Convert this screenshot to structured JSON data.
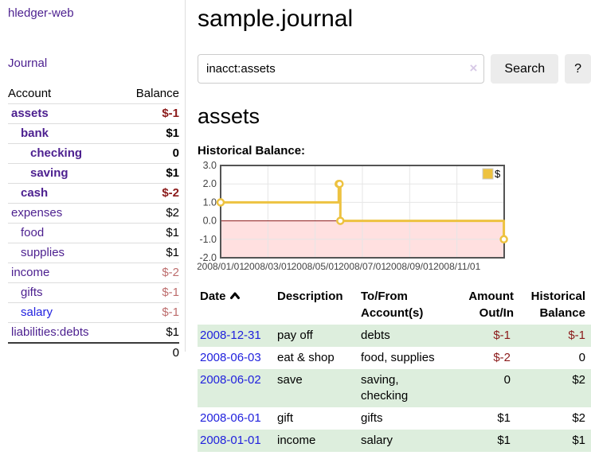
{
  "app": {
    "brand": "hledger-web",
    "nav_journal": "Journal"
  },
  "colors": {
    "link_purple": "#4c1f8f",
    "link_blue": "#2121dd",
    "negative_dark": "#8b1a1a",
    "negative_light": "#bd6d6d",
    "row_green": "#ddeedd",
    "series_gold": "#edc240",
    "grid_border": "#545454",
    "gridline": "#e6e6e6",
    "zero_line": "#8b1a1a"
  },
  "sidebar": {
    "header": {
      "account": "Account",
      "balance": "Balance"
    },
    "accounts": [
      {
        "name": "assets",
        "level": 1,
        "bold": true,
        "balance": "$-1",
        "neg": "dark"
      },
      {
        "name": "bank",
        "level": 2,
        "bold": true,
        "balance": "$1"
      },
      {
        "name": "checking",
        "level": 3,
        "bold": true,
        "balance": "0"
      },
      {
        "name": "saving",
        "level": 3,
        "bold": true,
        "balance": "$1"
      },
      {
        "name": "cash",
        "level": 2,
        "bold": true,
        "balance": "$-2",
        "neg": "dark"
      },
      {
        "name": "expenses",
        "level": 1,
        "bold": false,
        "balance": "$2"
      },
      {
        "name": "food",
        "level": 2,
        "bold": false,
        "balance": "$1"
      },
      {
        "name": "supplies",
        "level": 2,
        "bold": false,
        "balance": "$1"
      },
      {
        "name": "income",
        "level": 1,
        "bold": false,
        "balance": "$-2",
        "neg": "light"
      },
      {
        "name": "gifts",
        "level": 2,
        "bold": false,
        "balance": "$-1",
        "neg": "light"
      },
      {
        "name": "salary",
        "level": 2,
        "bold": false,
        "balance": "$-1",
        "neg": "light",
        "link": "blue"
      },
      {
        "name": "liabilities:debts",
        "level": 1,
        "bold": false,
        "balance": "$1"
      }
    ],
    "total": "0"
  },
  "main": {
    "title": "sample.journal",
    "search": {
      "value": "inacct:assets",
      "clear_icon": "×",
      "button": "Search",
      "help_button": "?"
    },
    "account_heading": "assets",
    "chart_label": "Historical Balance:"
  },
  "chart_data": {
    "type": "line",
    "title": "Historical Balance",
    "step": true,
    "series": [
      {
        "name": "$",
        "color": "#edc240",
        "points": [
          {
            "date": "2008-01-01",
            "y": 1
          },
          {
            "date": "2008-06-01",
            "y": 2
          },
          {
            "date": "2008-06-02",
            "y": 2
          },
          {
            "date": "2008-06-03",
            "y": 0
          },
          {
            "date": "2008-12-31",
            "y": -1
          }
        ]
      }
    ],
    "x_tick_labels": [
      "2008/01/01",
      "2008/03/01",
      "2008/05/01",
      "2008/07/01",
      "2008/09/01",
      "2008/11/01"
    ],
    "x_tick_months": [
      0,
      2,
      4,
      6,
      8,
      10
    ],
    "xlim_months": [
      0,
      12
    ],
    "y_ticks": [
      3.0,
      2.0,
      1.0,
      0.0,
      -1.0,
      -2.0
    ],
    "y_tick_labels": [
      "3.0",
      "2.0",
      "1.0",
      "0.0",
      "-1.0",
      "-2.0"
    ],
    "ylim": [
      -2,
      3
    ],
    "grid": true,
    "negative_region_shaded": true,
    "legend": {
      "label": "$",
      "position": "top-right"
    }
  },
  "register": {
    "headers": [
      {
        "lines": [
          "Date"
        ],
        "sorted": "asc"
      },
      {
        "lines": [
          "Description"
        ]
      },
      {
        "lines": [
          "To/From",
          "Account(s)"
        ]
      },
      {
        "lines": [
          "Amount",
          "Out/In"
        ],
        "align": "right"
      },
      {
        "lines": [
          "Historical",
          "Balance"
        ],
        "align": "right"
      }
    ],
    "rows": [
      {
        "date": "2008-12-31",
        "description": "pay off",
        "accounts_lines": [
          "debts"
        ],
        "amount": "$-1",
        "amount_neg": true,
        "balance": "$-1",
        "balance_neg": true
      },
      {
        "date": "2008-06-03",
        "description": "eat & shop",
        "accounts_lines": [
          "food, supplies"
        ],
        "amount": "$-2",
        "amount_neg": true,
        "balance": "0",
        "balance_neg": false
      },
      {
        "date": "2008-06-02",
        "description": "save",
        "accounts_lines": [
          "saving,",
          "checking"
        ],
        "amount": "0",
        "amount_neg": false,
        "balance": "$2",
        "balance_neg": false
      },
      {
        "date": "2008-06-01",
        "description": "gift",
        "accounts_lines": [
          "gifts"
        ],
        "amount": "$1",
        "amount_neg": false,
        "balance": "$2",
        "balance_neg": false
      },
      {
        "date": "2008-01-01",
        "description": "income",
        "accounts_lines": [
          "salary"
        ],
        "amount": "$1",
        "amount_neg": false,
        "balance": "$1",
        "balance_neg": false
      }
    ]
  }
}
